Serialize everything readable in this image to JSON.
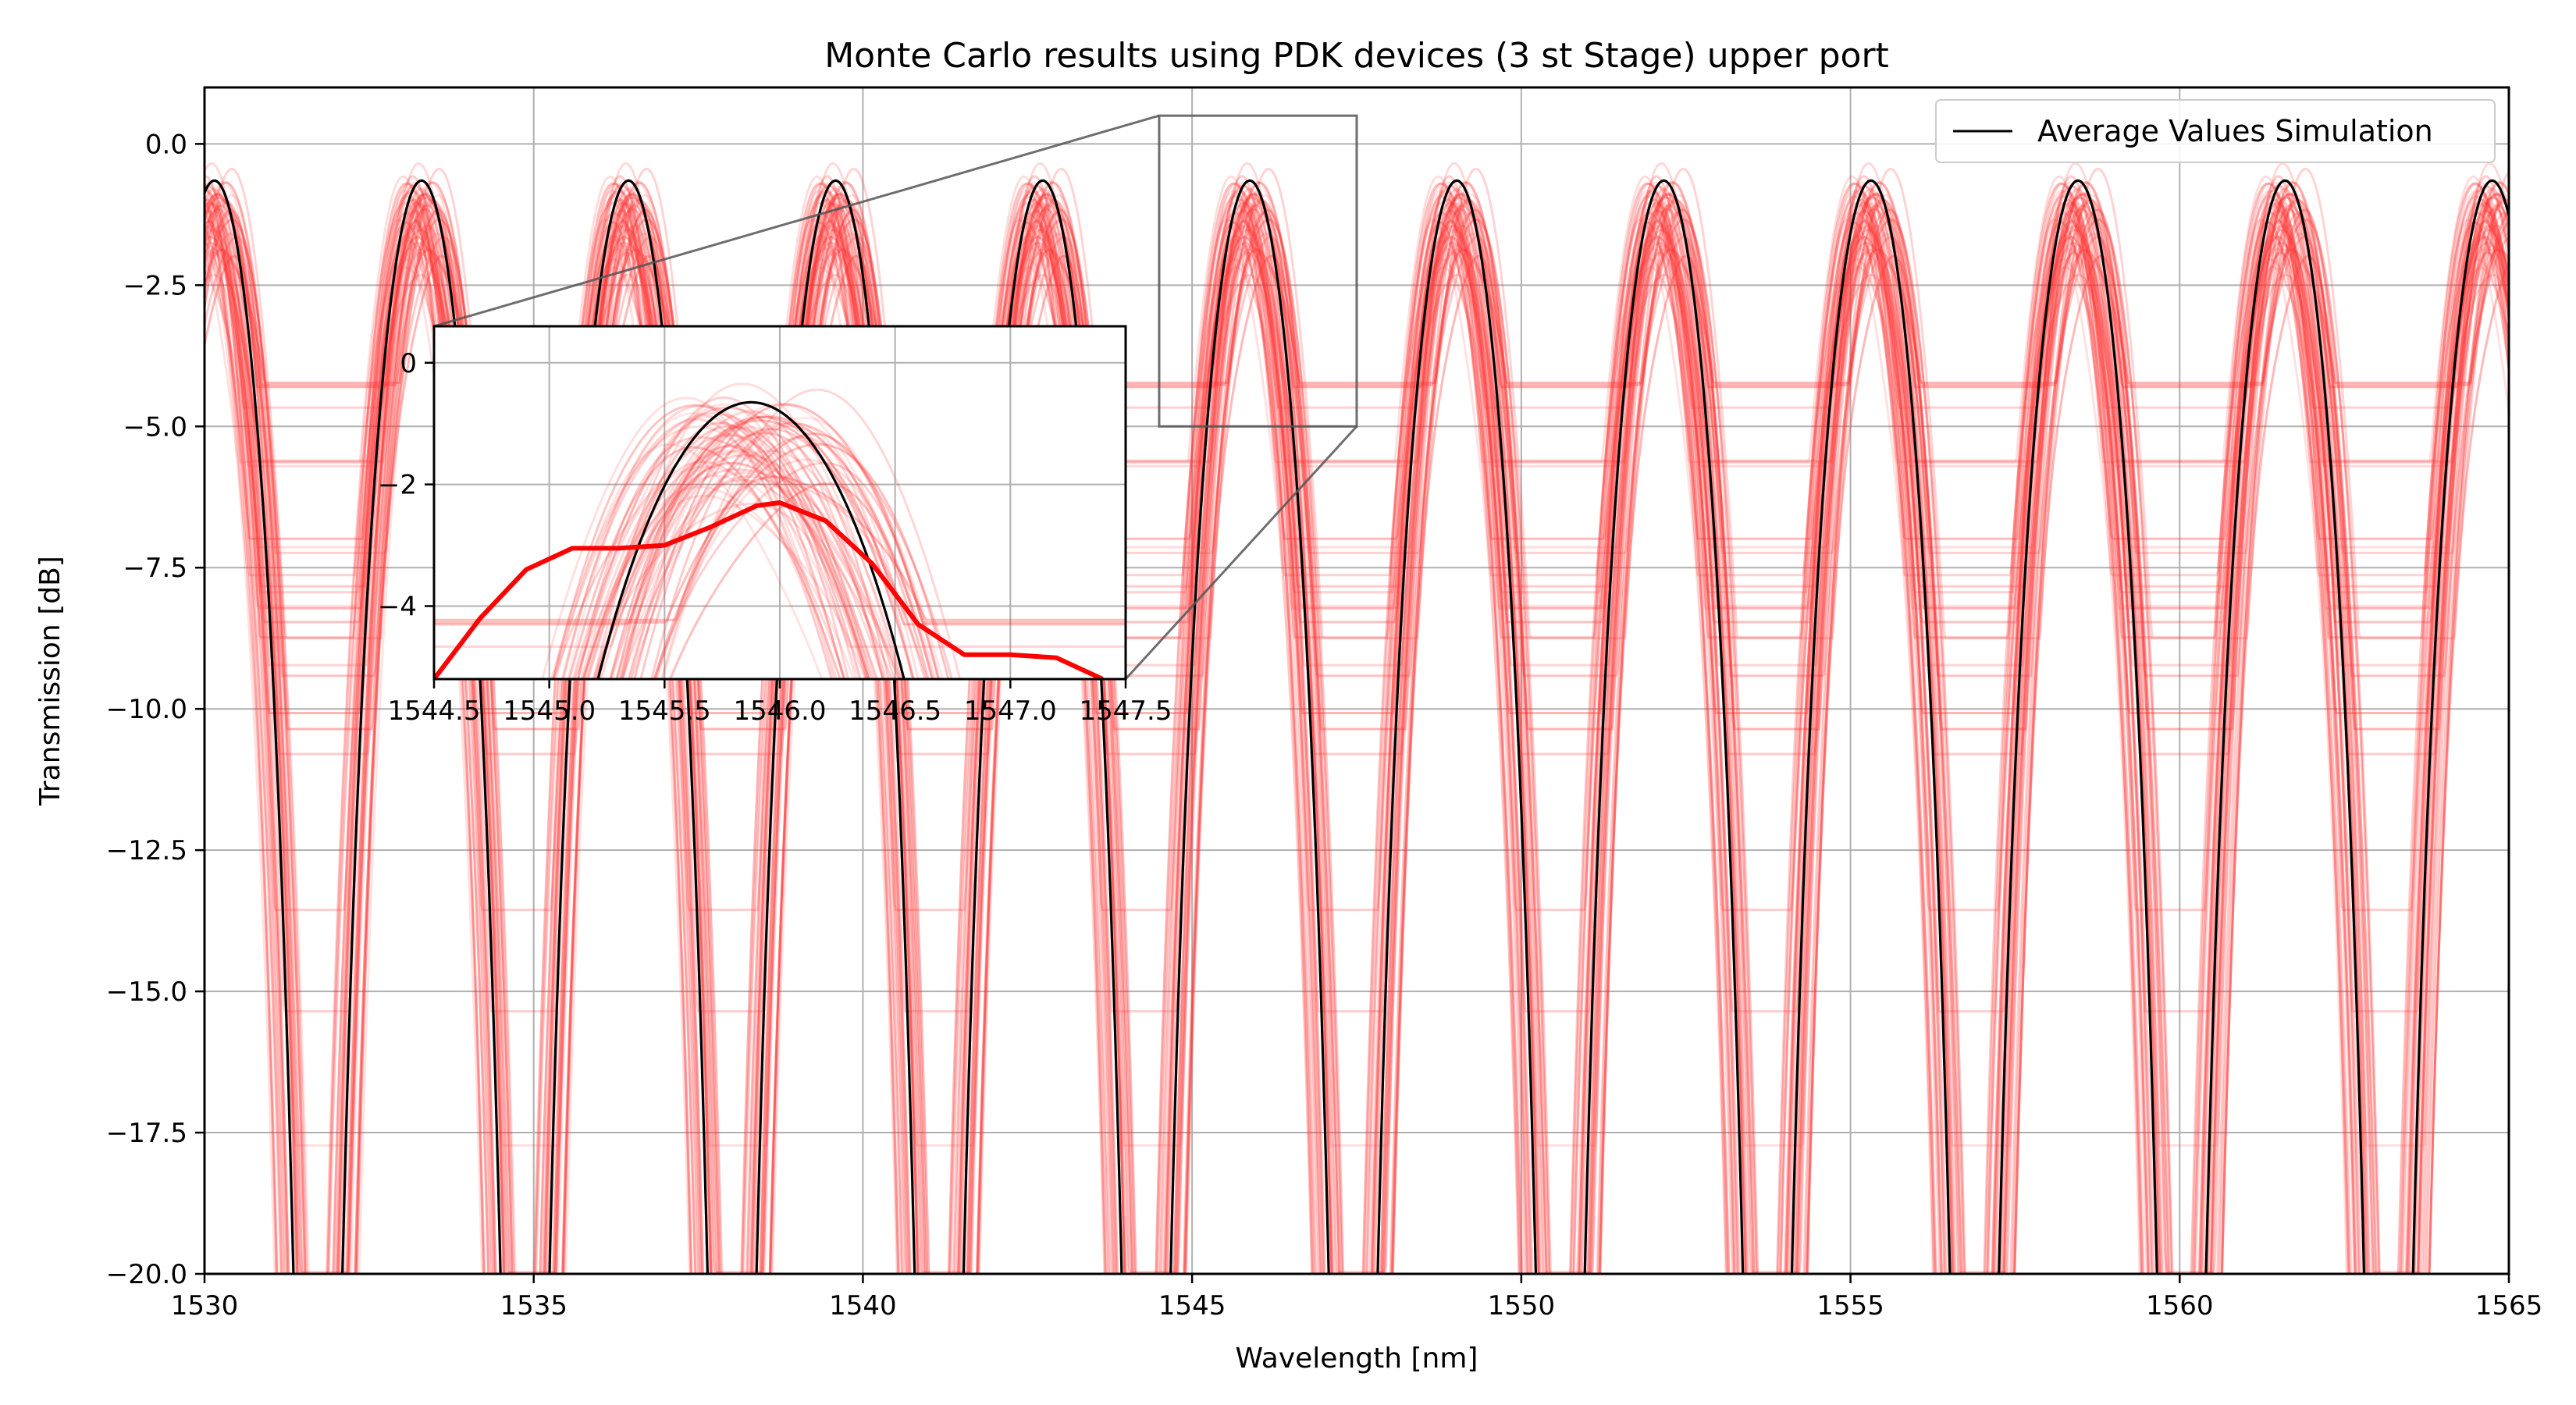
{
  "chart_data": [
    {
      "type": "line",
      "title": "Monte Carlo results using PDK devices (3 st Stage) upper port",
      "xlabel": "Wavelength [nm]",
      "ylabel": "Transmission [dB]",
      "xlim": [
        1530,
        1565
      ],
      "ylim": [
        -20,
        1
      ],
      "x_ticks": [
        "1530",
        "1535",
        "1540",
        "1545",
        "1550",
        "1555",
        "1560",
        "1565"
      ],
      "y_ticks": [
        "0.0",
        "−2.5",
        "−5.0",
        "−7.5",
        "−10.0",
        "−12.5",
        "−15.0",
        "−17.5",
        "−20.0"
      ],
      "grid": true,
      "legend": {
        "position": "top-right",
        "entries": [
          "Average Values Simulation"
        ]
      },
      "series": [
        {
          "name": "Average Values Simulation",
          "color": "#000000",
          "peak_transmission_db": -0.65,
          "peaks_nm": [
            1530.15,
            1533.3,
            1536.45,
            1539.6,
            1542.75,
            1545.9,
            1549.05,
            1552.2,
            1555.35,
            1558.5,
            1561.65,
            1564.8
          ],
          "notches_nm": [
            1531.9,
            1535.0,
            1538.2,
            1541.3,
            1544.5,
            1547.6,
            1550.8,
            1554.0,
            1557.1,
            1560.2,
            1563.4
          ],
          "notch_depth_db": "below -20"
        }
      ],
      "monte_carlo_runs": {
        "color": "#ff3030",
        "count_estimate": 60,
        "peak_transmission_range_db": [
          -2.5,
          -0.65
        ],
        "secondary_dip_range_db": [
          -6.5,
          -2.6
        ]
      }
    },
    {
      "type": "line",
      "role": "inset",
      "xlim": [
        1544.5,
        1547.5
      ],
      "ylim": [
        -5.2,
        0.6
      ],
      "x_ticks": [
        "1544.5",
        "1545.0",
        "1545.5",
        "1546.0",
        "1546.5",
        "1547.0",
        "1547.5"
      ],
      "y_ticks": [
        "0",
        "−2",
        "−4"
      ],
      "grid": true,
      "zoom_box_on_main": {
        "x": [
          1544.5,
          1547.5
        ],
        "y": [
          -5.0,
          0.5
        ]
      },
      "highlighted_run": {
        "color": "#ff0000",
        "x": [
          1544.5,
          1544.7,
          1544.9,
          1545.1,
          1545.3,
          1545.5,
          1545.7,
          1545.9,
          1546.0,
          1546.2,
          1546.4,
          1546.6,
          1546.8,
          1547.0,
          1547.2,
          1547.4
        ],
        "y": [
          -5.2,
          -4.2,
          -3.4,
          -3.05,
          -3.05,
          -3.0,
          -2.7,
          -2.35,
          -2.3,
          -2.6,
          -3.3,
          -4.3,
          -4.8,
          -4.8,
          -4.85,
          -5.2
        ]
      }
    }
  ]
}
